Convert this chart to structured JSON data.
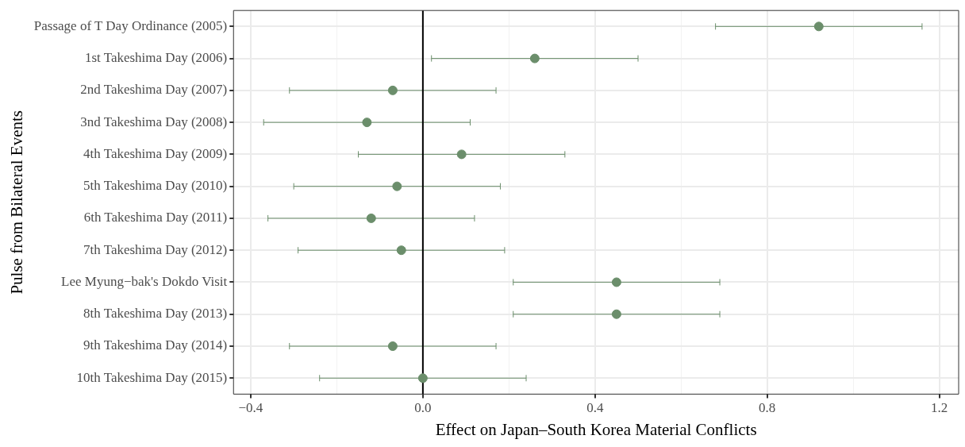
{
  "chart_data": {
    "type": "scatter",
    "orientation": "horizontal",
    "xlabel": "Effect on Japan–South Korea Material Conflicts",
    "ylabel": "Pulse from Bilateral Events",
    "categories": [
      "Passage of T Day Ordinance (2005)",
      "1st Takeshima Day (2006)",
      "2nd Takeshima Day (2007)",
      "3nd Takeshima Day (2008)",
      "4th Takeshima Day (2009)",
      "5th Takeshima Day (2010)",
      "6th Takeshima Day (2011)",
      "7th Takeshima Day (2012)",
      "Lee Myung−bak's Dokdo Visit",
      "8th Takeshima Day (2013)",
      "9th Takeshima Day (2014)",
      "10th Takeshima Day (2015)"
    ],
    "series": [
      {
        "color": "#6b8e6b",
        "values": [
          0.92,
          0.26,
          -0.07,
          -0.13,
          0.09,
          -0.06,
          -0.12,
          -0.05,
          0.45,
          0.45,
          -0.07,
          0.0
        ],
        "errors": [
          0.24,
          0.24,
          0.24,
          0.24,
          0.24,
          0.24,
          0.24,
          0.24,
          0.24,
          0.24,
          0.24,
          0.24
        ]
      }
    ],
    "xlim": [
      -0.44,
      1.245
    ],
    "xticks": [
      {
        "value": -0.4,
        "label": "−0.4"
      },
      {
        "value": -0.2,
        "label": null
      },
      {
        "value": 0,
        "label": "0.0"
      },
      {
        "value": 0.2,
        "label": null
      },
      {
        "value": 0.4,
        "label": "0.4"
      },
      {
        "value": 0.6,
        "label": null
      },
      {
        "value": 0.8,
        "label": "0.8"
      },
      {
        "value": 1.0,
        "label": null
      },
      {
        "value": 1.2,
        "label": "1.2"
      }
    ],
    "ref_lines": [
      {
        "axis": "x",
        "value": 0,
        "color": "#000000"
      }
    ],
    "grid": true,
    "marker": "circle",
    "legend": false
  }
}
